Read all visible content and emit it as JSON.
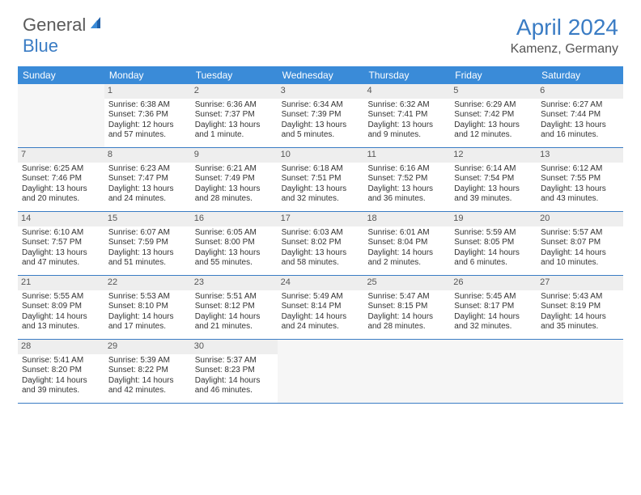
{
  "logo": {
    "text1": "General",
    "text2": "Blue",
    "icon_color": "#1f5fa8"
  },
  "header": {
    "title": "April 2024",
    "location": "Kamenz, Germany"
  },
  "colors": {
    "header_bar": "#3a8bd8",
    "accent": "#3a7cc4",
    "day_header_bg": "#eeeeee",
    "empty_bg": "#f6f6f6"
  },
  "weekdays": [
    "Sunday",
    "Monday",
    "Tuesday",
    "Wednesday",
    "Thursday",
    "Friday",
    "Saturday"
  ],
  "weeks": [
    [
      null,
      {
        "n": "1",
        "sr": "Sunrise: 6:38 AM",
        "ss": "Sunset: 7:36 PM",
        "d1": "Daylight: 12 hours",
        "d2": "and 57 minutes."
      },
      {
        "n": "2",
        "sr": "Sunrise: 6:36 AM",
        "ss": "Sunset: 7:37 PM",
        "d1": "Daylight: 13 hours",
        "d2": "and 1 minute."
      },
      {
        "n": "3",
        "sr": "Sunrise: 6:34 AM",
        "ss": "Sunset: 7:39 PM",
        "d1": "Daylight: 13 hours",
        "d2": "and 5 minutes."
      },
      {
        "n": "4",
        "sr": "Sunrise: 6:32 AM",
        "ss": "Sunset: 7:41 PM",
        "d1": "Daylight: 13 hours",
        "d2": "and 9 minutes."
      },
      {
        "n": "5",
        "sr": "Sunrise: 6:29 AM",
        "ss": "Sunset: 7:42 PM",
        "d1": "Daylight: 13 hours",
        "d2": "and 12 minutes."
      },
      {
        "n": "6",
        "sr": "Sunrise: 6:27 AM",
        "ss": "Sunset: 7:44 PM",
        "d1": "Daylight: 13 hours",
        "d2": "and 16 minutes."
      }
    ],
    [
      {
        "n": "7",
        "sr": "Sunrise: 6:25 AM",
        "ss": "Sunset: 7:46 PM",
        "d1": "Daylight: 13 hours",
        "d2": "and 20 minutes."
      },
      {
        "n": "8",
        "sr": "Sunrise: 6:23 AM",
        "ss": "Sunset: 7:47 PM",
        "d1": "Daylight: 13 hours",
        "d2": "and 24 minutes."
      },
      {
        "n": "9",
        "sr": "Sunrise: 6:21 AM",
        "ss": "Sunset: 7:49 PM",
        "d1": "Daylight: 13 hours",
        "d2": "and 28 minutes."
      },
      {
        "n": "10",
        "sr": "Sunrise: 6:18 AM",
        "ss": "Sunset: 7:51 PM",
        "d1": "Daylight: 13 hours",
        "d2": "and 32 minutes."
      },
      {
        "n": "11",
        "sr": "Sunrise: 6:16 AM",
        "ss": "Sunset: 7:52 PM",
        "d1": "Daylight: 13 hours",
        "d2": "and 36 minutes."
      },
      {
        "n": "12",
        "sr": "Sunrise: 6:14 AM",
        "ss": "Sunset: 7:54 PM",
        "d1": "Daylight: 13 hours",
        "d2": "and 39 minutes."
      },
      {
        "n": "13",
        "sr": "Sunrise: 6:12 AM",
        "ss": "Sunset: 7:55 PM",
        "d1": "Daylight: 13 hours",
        "d2": "and 43 minutes."
      }
    ],
    [
      {
        "n": "14",
        "sr": "Sunrise: 6:10 AM",
        "ss": "Sunset: 7:57 PM",
        "d1": "Daylight: 13 hours",
        "d2": "and 47 minutes."
      },
      {
        "n": "15",
        "sr": "Sunrise: 6:07 AM",
        "ss": "Sunset: 7:59 PM",
        "d1": "Daylight: 13 hours",
        "d2": "and 51 minutes."
      },
      {
        "n": "16",
        "sr": "Sunrise: 6:05 AM",
        "ss": "Sunset: 8:00 PM",
        "d1": "Daylight: 13 hours",
        "d2": "and 55 minutes."
      },
      {
        "n": "17",
        "sr": "Sunrise: 6:03 AM",
        "ss": "Sunset: 8:02 PM",
        "d1": "Daylight: 13 hours",
        "d2": "and 58 minutes."
      },
      {
        "n": "18",
        "sr": "Sunrise: 6:01 AM",
        "ss": "Sunset: 8:04 PM",
        "d1": "Daylight: 14 hours",
        "d2": "and 2 minutes."
      },
      {
        "n": "19",
        "sr": "Sunrise: 5:59 AM",
        "ss": "Sunset: 8:05 PM",
        "d1": "Daylight: 14 hours",
        "d2": "and 6 minutes."
      },
      {
        "n": "20",
        "sr": "Sunrise: 5:57 AM",
        "ss": "Sunset: 8:07 PM",
        "d1": "Daylight: 14 hours",
        "d2": "and 10 minutes."
      }
    ],
    [
      {
        "n": "21",
        "sr": "Sunrise: 5:55 AM",
        "ss": "Sunset: 8:09 PM",
        "d1": "Daylight: 14 hours",
        "d2": "and 13 minutes."
      },
      {
        "n": "22",
        "sr": "Sunrise: 5:53 AM",
        "ss": "Sunset: 8:10 PM",
        "d1": "Daylight: 14 hours",
        "d2": "and 17 minutes."
      },
      {
        "n": "23",
        "sr": "Sunrise: 5:51 AM",
        "ss": "Sunset: 8:12 PM",
        "d1": "Daylight: 14 hours",
        "d2": "and 21 minutes."
      },
      {
        "n": "24",
        "sr": "Sunrise: 5:49 AM",
        "ss": "Sunset: 8:14 PM",
        "d1": "Daylight: 14 hours",
        "d2": "and 24 minutes."
      },
      {
        "n": "25",
        "sr": "Sunrise: 5:47 AM",
        "ss": "Sunset: 8:15 PM",
        "d1": "Daylight: 14 hours",
        "d2": "and 28 minutes."
      },
      {
        "n": "26",
        "sr": "Sunrise: 5:45 AM",
        "ss": "Sunset: 8:17 PM",
        "d1": "Daylight: 14 hours",
        "d2": "and 32 minutes."
      },
      {
        "n": "27",
        "sr": "Sunrise: 5:43 AM",
        "ss": "Sunset: 8:19 PM",
        "d1": "Daylight: 14 hours",
        "d2": "and 35 minutes."
      }
    ],
    [
      {
        "n": "28",
        "sr": "Sunrise: 5:41 AM",
        "ss": "Sunset: 8:20 PM",
        "d1": "Daylight: 14 hours",
        "d2": "and 39 minutes."
      },
      {
        "n": "29",
        "sr": "Sunrise: 5:39 AM",
        "ss": "Sunset: 8:22 PM",
        "d1": "Daylight: 14 hours",
        "d2": "and 42 minutes."
      },
      {
        "n": "30",
        "sr": "Sunrise: 5:37 AM",
        "ss": "Sunset: 8:23 PM",
        "d1": "Daylight: 14 hours",
        "d2": "and 46 minutes."
      },
      null,
      null,
      null,
      null
    ]
  ]
}
